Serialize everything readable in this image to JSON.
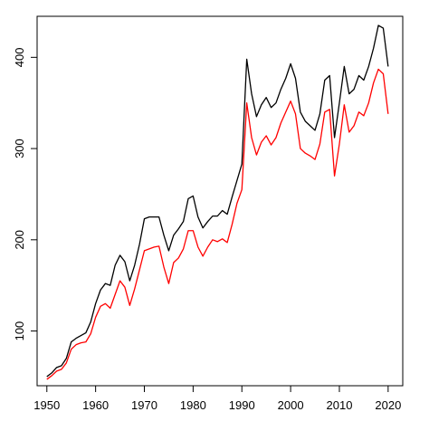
{
  "chart_data": {
    "type": "line",
    "title": "",
    "xlabel": "",
    "ylabel": "",
    "xlim": [
      1948,
      2023
    ],
    "ylim": [
      40,
      445
    ],
    "grid": false,
    "legend": "none",
    "x_ticks": [
      1950,
      1960,
      1970,
      1980,
      1990,
      2000,
      2010,
      2020
    ],
    "y_ticks": [
      100,
      200,
      300,
      400
    ],
    "x": [
      1950,
      1951,
      1952,
      1953,
      1954,
      1955,
      1956,
      1957,
      1958,
      1959,
      1960,
      1961,
      1962,
      1963,
      1964,
      1965,
      1966,
      1967,
      1968,
      1969,
      1970,
      1971,
      1972,
      1973,
      1974,
      1975,
      1976,
      1977,
      1978,
      1979,
      1980,
      1981,
      1982,
      1983,
      1984,
      1985,
      1986,
      1987,
      1988,
      1989,
      1990,
      1991,
      1992,
      1993,
      1994,
      1995,
      1996,
      1997,
      1998,
      1999,
      2000,
      2001,
      2002,
      2003,
      2004,
      2005,
      2006,
      2007,
      2008,
      2009,
      2010,
      2011,
      2012,
      2013,
      2014,
      2015,
      2016,
      2017,
      2018,
      2019,
      2020
    ],
    "series": [
      {
        "color": "#000000",
        "values": [
          50,
          54,
          60,
          62,
          70,
          88,
          92,
          95,
          98,
          110,
          130,
          145,
          152,
          150,
          172,
          183,
          176,
          155,
          172,
          195,
          223,
          225,
          225,
          225,
          205,
          188,
          205,
          212,
          220,
          245,
          248,
          225,
          213,
          220,
          226,
          226,
          232,
          228,
          247,
          265,
          283,
          398,
          360,
          335,
          348,
          356,
          345,
          350,
          365,
          377,
          393,
          377,
          340,
          330,
          325,
          320,
          338,
          375,
          380,
          312,
          350,
          390,
          360,
          365,
          380,
          375,
          390,
          410,
          435,
          432,
          390
        ]
      },
      {
        "color": "#ff0000",
        "values": [
          47,
          51,
          56,
          58,
          65,
          80,
          85,
          87,
          88,
          97,
          115,
          127,
          130,
          125,
          140,
          155,
          148,
          128,
          146,
          167,
          188,
          190,
          192,
          193,
          170,
          152,
          175,
          180,
          190,
          210,
          210,
          192,
          182,
          192,
          200,
          198,
          201,
          197,
          217,
          240,
          255,
          350,
          312,
          293,
          307,
          314,
          304,
          312,
          328,
          340,
          352,
          338,
          300,
          295,
          292,
          288,
          305,
          340,
          343,
          270,
          305,
          348,
          318,
          325,
          340,
          336,
          350,
          372,
          387,
          382,
          338
        ]
      }
    ]
  }
}
